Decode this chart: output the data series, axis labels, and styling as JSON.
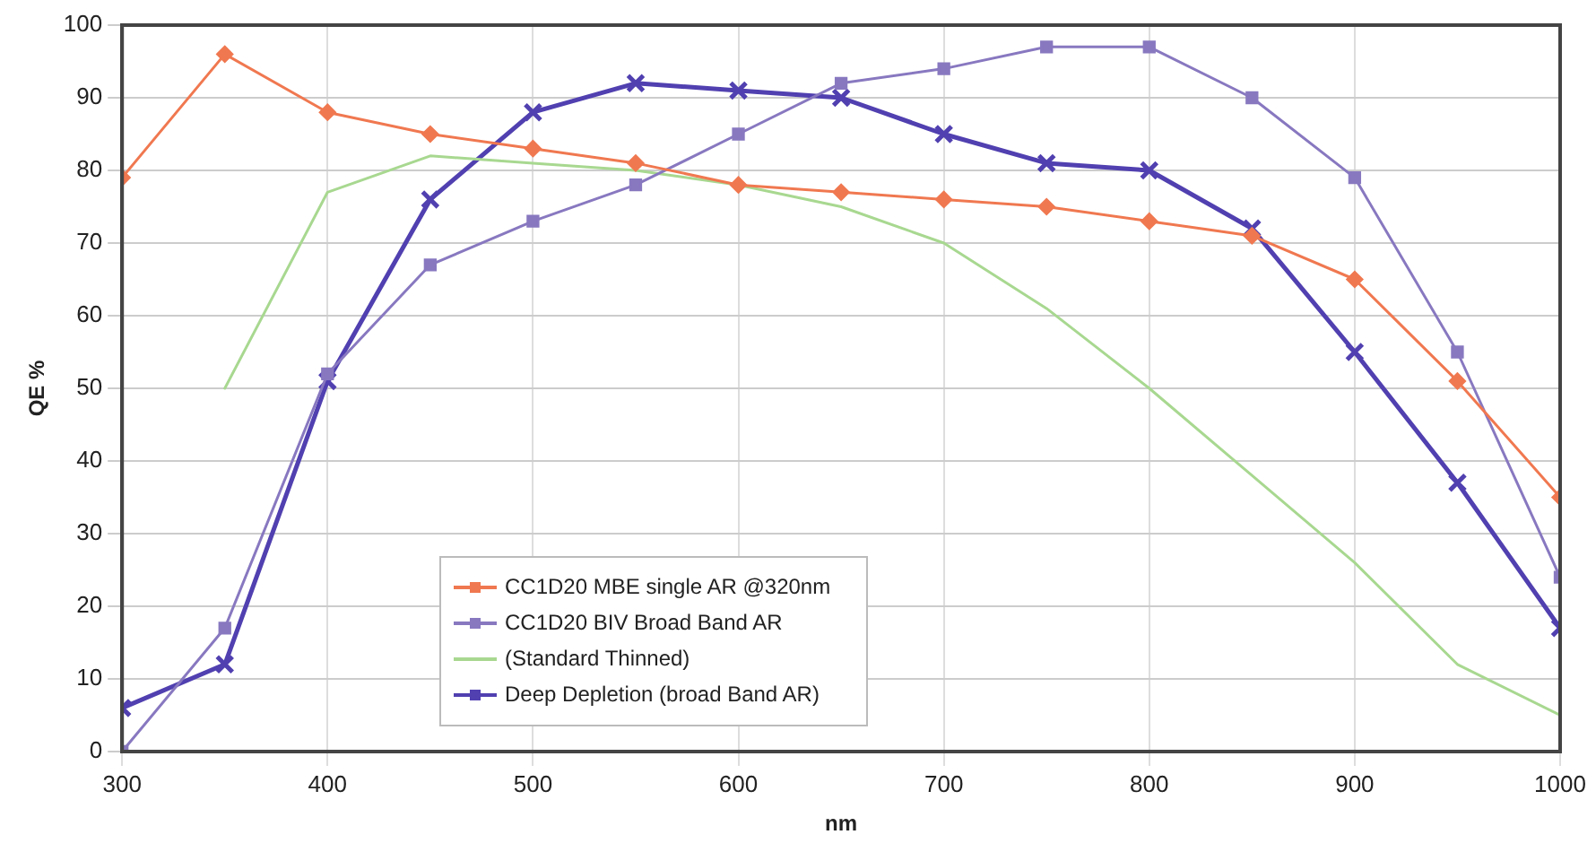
{
  "chart_data": {
    "type": "line",
    "xlabel": "nm",
    "ylabel": "QE %",
    "x": [
      300,
      350,
      400,
      450,
      500,
      550,
      600,
      650,
      700,
      750,
      800,
      850,
      900,
      950,
      1000
    ],
    "xlim": [
      300,
      1000
    ],
    "xticks": [
      300,
      400,
      500,
      600,
      700,
      800,
      900,
      1000
    ],
    "ylim": [
      0,
      100
    ],
    "yticks": [
      0,
      10,
      20,
      30,
      40,
      50,
      60,
      70,
      80,
      90,
      100
    ],
    "grid": true,
    "legend": "bottom left",
    "line_style": "solid",
    "series": [
      {
        "name": "CC1D20 MBE single AR @320nm",
        "color": "#f07850",
        "marker": "diamond",
        "values": [
          79,
          96,
          88,
          85,
          83,
          81,
          78,
          77,
          76,
          75,
          73,
          71,
          65,
          51,
          35
        ]
      },
      {
        "name": "CC1D20 BIV Broad Band AR",
        "color": "#8878c0",
        "marker": "square",
        "values": [
          0,
          17,
          52,
          67,
          73,
          78,
          85,
          92,
          94,
          97,
          97,
          90,
          79,
          55,
          24
        ]
      },
      {
        "name": "(Standard Thinned)",
        "color": "#a8d890",
        "marker": "none",
        "values": [
          null,
          50,
          77,
          82,
          81,
          80,
          78,
          75,
          70,
          61,
          50,
          38,
          26,
          12,
          5
        ]
      },
      {
        "name": "Deep Depletion (broad Band AR)",
        "color": "#5040b0",
        "marker": "cross",
        "values": [
          6,
          12,
          51,
          76,
          88,
          92,
          91,
          90,
          85,
          81,
          80,
          72,
          55,
          37,
          17
        ]
      }
    ]
  }
}
